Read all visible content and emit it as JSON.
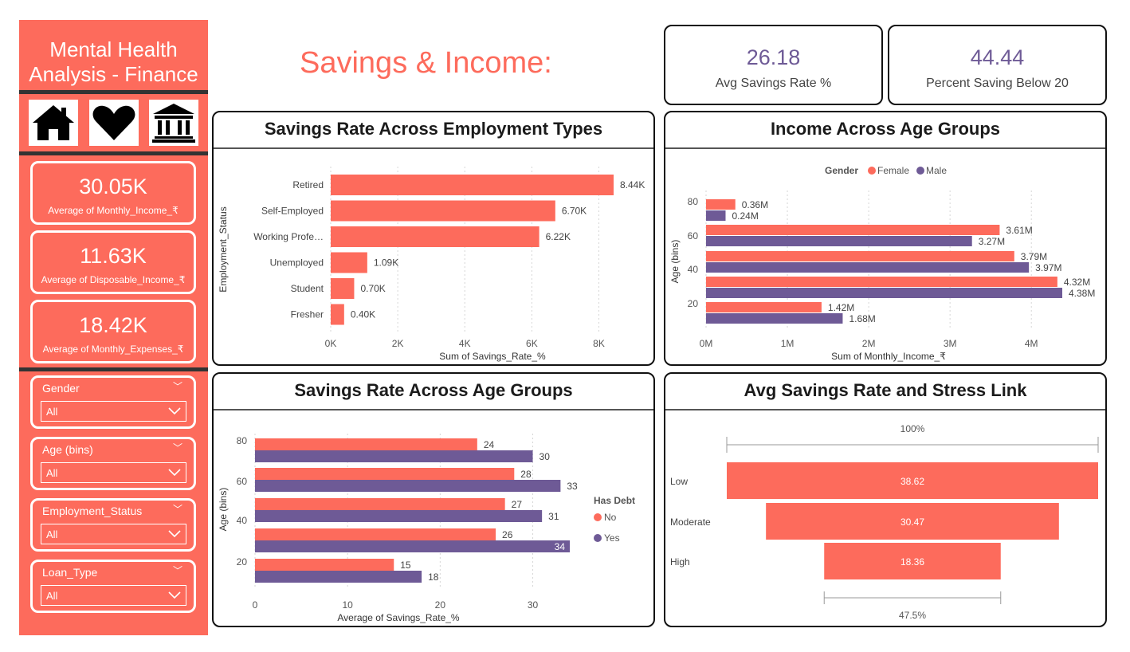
{
  "sidebar": {
    "title_line1": "Mental Health",
    "title_line2": "Analysis - Finance",
    "nav_icons": [
      "home-icon",
      "heart-icon",
      "bank-icon"
    ],
    "kpis": [
      {
        "value": "30.05K",
        "label": "Average of Monthly_Income_₹"
      },
      {
        "value": "11.63K",
        "label": "Average of Disposable_Income_₹"
      },
      {
        "value": "18.42K",
        "label": "Average of Monthly_Expenses_₹"
      }
    ],
    "slicers": [
      {
        "title": "Gender",
        "value": "All"
      },
      {
        "title": "Age (bins)",
        "value": "All"
      },
      {
        "title": "Employment_Status",
        "value": "All"
      },
      {
        "title": "Loan_Type",
        "value": "All"
      }
    ]
  },
  "page_title": "Savings & Income:",
  "cards": [
    {
      "value": "26.18",
      "label": "Avg Savings Rate %"
    },
    {
      "value": "44.44",
      "label": "Percent Saving Below 20"
    }
  ],
  "colors": {
    "accent": "#fd6b5c",
    "purple": "#6e5a96"
  },
  "chart_data": [
    {
      "type": "bar",
      "orientation": "horizontal",
      "title": "Savings Rate Across Employment Types",
      "xlabel": "Sum of Savings_Rate_%",
      "ylabel": "Employment_Status",
      "categories": [
        "Retired",
        "Self-Employed",
        "Working Profe…",
        "Unemployed",
        "Student",
        "Fresher"
      ],
      "values": [
        8440,
        6700,
        6220,
        1090,
        700,
        400
      ],
      "data_labels": [
        "8.44K",
        "6.70K",
        "6.22K",
        "1.09K",
        "0.70K",
        "0.40K"
      ],
      "xticks": [
        "0K",
        "2K",
        "4K",
        "6K",
        "8K"
      ],
      "xlim": [
        0,
        8440
      ]
    },
    {
      "type": "bar",
      "orientation": "horizontal",
      "title": "Income Across Age Groups",
      "xlabel": "Sum of Monthly_Income_₹",
      "ylabel": "Age (bins)",
      "legend_title": "Gender",
      "legend_position": "top",
      "categories": [
        "80",
        "",
        "60",
        "40",
        "20"
      ],
      "ytick_labels": [
        "80",
        "60",
        "40",
        "20"
      ],
      "series": [
        {
          "name": "Female",
          "color": "#fd6b5c",
          "values": [
            0.36,
            3.61,
            3.79,
            4.32,
            1.42
          ],
          "labels": [
            "0.36M",
            "3.61M",
            "3.79M",
            "4.32M",
            "1.42M"
          ]
        },
        {
          "name": "Male",
          "color": "#6e5a96",
          "values": [
            0.24,
            3.27,
            3.97,
            4.38,
            1.68
          ],
          "labels": [
            "0.24M",
            "3.27M",
            "3.97M",
            "4.38M",
            "1.68M"
          ]
        }
      ],
      "xticks": [
        "0M",
        "1M",
        "2M",
        "3M",
        "4M"
      ],
      "xlim": [
        0,
        4.38
      ]
    },
    {
      "type": "bar",
      "orientation": "horizontal",
      "title": "Savings Rate Across Age Groups",
      "xlabel": "Average of Savings_Rate_%",
      "ylabel": "Age (bins)",
      "legend_title": "Has Debt",
      "legend_position": "right",
      "ytick_labels": [
        "80",
        "60",
        "40",
        "20"
      ],
      "series": [
        {
          "name": "No",
          "color": "#fd6b5c",
          "values": [
            24,
            28,
            27,
            26,
            15
          ]
        },
        {
          "name": "Yes",
          "color": "#6e5a96",
          "values": [
            30,
            33,
            31,
            34,
            18
          ]
        }
      ],
      "xticks": [
        "0",
        "10",
        "20",
        "30"
      ],
      "xlim": [
        0,
        34
      ]
    },
    {
      "type": "bar",
      "subtype": "funnel",
      "title": "Avg Savings Rate and Stress Link",
      "categories": [
        "Low",
        "Moderate",
        "High"
      ],
      "values": [
        38.62,
        30.47,
        18.36
      ],
      "top_label": "100%",
      "bottom_label": "47.5%"
    }
  ]
}
